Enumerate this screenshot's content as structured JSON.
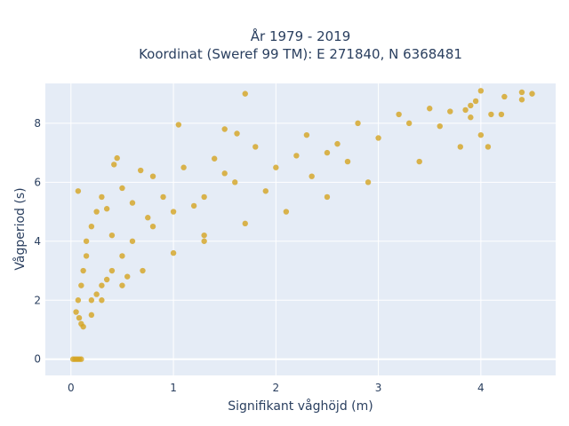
{
  "chart_data": {
    "type": "scatter",
    "title_line1": "År 1979 - 2019",
    "title_line2": "Koordinat (Sweref 99 TM): E 271840, N 6368481",
    "xlabel": "Signifikant våghöjd (m)",
    "ylabel": "Vågperiod (s)",
    "xlim": [
      -0.25,
      4.73
    ],
    "ylim": [
      -0.55,
      9.35
    ],
    "x_ticks": [
      0,
      1,
      2,
      3,
      4
    ],
    "y_ticks": [
      0,
      2,
      4,
      6,
      8
    ],
    "grid": true,
    "series": [
      {
        "color": "#d4a420",
        "points": [
          [
            0.05,
            1.6
          ],
          [
            0.08,
            1.4
          ],
          [
            0.1,
            1.2
          ],
          [
            0.12,
            1.1
          ],
          [
            0.07,
            2.0
          ],
          [
            0.1,
            2.5
          ],
          [
            0.12,
            3.0
          ],
          [
            0.15,
            3.5
          ],
          [
            0.15,
            4.0
          ],
          [
            0.2,
            4.5
          ],
          [
            0.25,
            5.0
          ],
          [
            0.3,
            5.5
          ],
          [
            0.2,
            2.0
          ],
          [
            0.3,
            2.5
          ],
          [
            0.4,
            3.0
          ],
          [
            0.5,
            3.5
          ],
          [
            0.6,
            4.0
          ],
          [
            0.8,
            4.5
          ],
          [
            1.0,
            5.0
          ],
          [
            1.3,
            5.5
          ],
          [
            1.6,
            6.0
          ],
          [
            2.0,
            6.5
          ],
          [
            2.5,
            7.0
          ],
          [
            3.0,
            7.5
          ],
          [
            3.3,
            8.0
          ],
          [
            0.5,
            5.8
          ],
          [
            0.8,
            6.2
          ],
          [
            1.1,
            6.5
          ],
          [
            1.4,
            6.8
          ],
          [
            1.8,
            7.2
          ],
          [
            2.3,
            7.6
          ],
          [
            2.8,
            8.0
          ],
          [
            3.2,
            8.3
          ],
          [
            0.2,
            1.5
          ],
          [
            0.3,
            2.0
          ],
          [
            0.5,
            2.5
          ],
          [
            0.7,
            3.0
          ],
          [
            1.0,
            3.6
          ],
          [
            1.3,
            4.0
          ],
          [
            1.7,
            4.6
          ],
          [
            2.1,
            5.0
          ],
          [
            2.5,
            5.5
          ],
          [
            2.9,
            6.0
          ],
          [
            3.4,
            6.7
          ],
          [
            3.8,
            7.2
          ],
          [
            4.0,
            7.6
          ],
          [
            3.6,
            7.9
          ],
          [
            3.9,
            8.2
          ],
          [
            4.1,
            8.3
          ],
          [
            4.4,
            8.8
          ],
          [
            4.5,
            9.0
          ],
          [
            4.4,
            9.05
          ],
          [
            4.23,
            8.9
          ],
          [
            4.0,
            9.1
          ],
          [
            3.95,
            8.75
          ],
          [
            3.9,
            8.6
          ],
          [
            3.5,
            8.5
          ],
          [
            3.7,
            8.4
          ],
          [
            3.85,
            8.45
          ],
          [
            1.7,
            9.0
          ],
          [
            1.05,
            7.95
          ],
          [
            1.5,
            7.8
          ],
          [
            1.62,
            7.65
          ],
          [
            0.68,
            6.4
          ],
          [
            0.42,
            6.6
          ],
          [
            0.45,
            6.82
          ],
          [
            0.07,
            5.7
          ],
          [
            1.3,
            4.2
          ],
          [
            4.07,
            7.2
          ],
          [
            4.2,
            8.3
          ],
          [
            0.35,
            2.7
          ],
          [
            0.55,
            2.8
          ],
          [
            0.25,
            2.2
          ],
          [
            0.4,
            4.2
          ],
          [
            0.9,
            5.5
          ],
          [
            1.5,
            6.3
          ],
          [
            2.2,
            6.9
          ],
          [
            2.6,
            7.3
          ],
          [
            2.7,
            6.7
          ],
          [
            2.35,
            6.2
          ],
          [
            1.9,
            5.7
          ],
          [
            1.2,
            5.2
          ],
          [
            0.75,
            4.8
          ],
          [
            0.6,
            5.3
          ],
          [
            0.35,
            5.1
          ],
          [
            0.02,
            0.0
          ],
          [
            0.04,
            0.0
          ],
          [
            0.06,
            0.0
          ],
          [
            0.08,
            0.0
          ],
          [
            0.1,
            0.0
          ]
        ]
      }
    ]
  }
}
